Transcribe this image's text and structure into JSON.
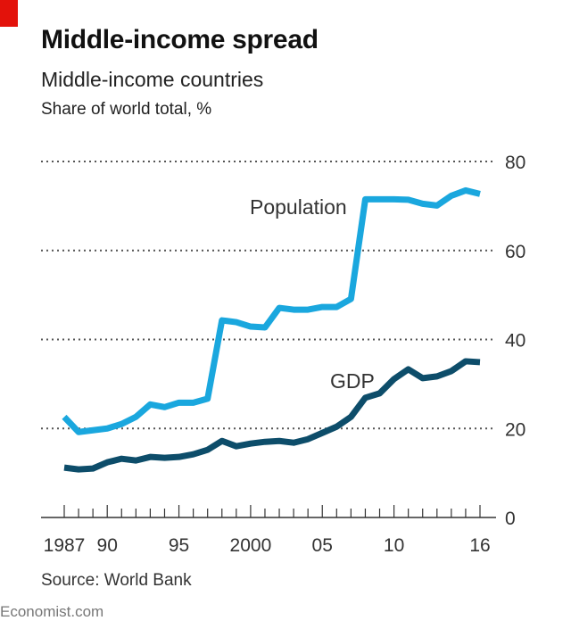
{
  "header": {
    "title": "Middle-income spread",
    "subtitle": "Middle-income countries",
    "unit": "Share of world total, %"
  },
  "footer": {
    "source": "Source: World Bank",
    "credit": "Economist.com"
  },
  "colors": {
    "accent": "#e3120b",
    "population": "#1aa7de",
    "gdp": "#0d4d6a"
  },
  "chart_data": {
    "type": "line",
    "title": "Middle-income spread",
    "subtitle": "Middle-income countries",
    "ylabel": "Share of world total, %",
    "ylim": [
      0,
      80
    ],
    "yticks": [
      0,
      20,
      40,
      60,
      80
    ],
    "xlim": [
      1987,
      2016
    ],
    "xtick_labels": [
      {
        "x": 1987,
        "label": "1987"
      },
      {
        "x": 1990,
        "label": "90"
      },
      {
        "x": 1995,
        "label": "95"
      },
      {
        "x": 2000,
        "label": "2000"
      },
      {
        "x": 2005,
        "label": "05"
      },
      {
        "x": 2010,
        "label": "10"
      },
      {
        "x": 2016,
        "label": "16"
      }
    ],
    "grid": "horizontal dotted",
    "x": [
      1987,
      1988,
      1989,
      1990,
      1991,
      1992,
      1993,
      1994,
      1995,
      1996,
      1997,
      1998,
      1999,
      2000,
      2001,
      2002,
      2003,
      2004,
      2005,
      2006,
      2007,
      2008,
      2009,
      2010,
      2011,
      2012,
      2013,
      2014,
      2015,
      2016
    ],
    "series": [
      {
        "name": "Population",
        "values": [
          22.6,
          19.2,
          19.6,
          20.0,
          21.0,
          22.6,
          25.4,
          24.8,
          25.8,
          25.8,
          26.7,
          44.3,
          43.9,
          42.9,
          42.7,
          47.1,
          46.7,
          46.7,
          47.3,
          47.3,
          49.1,
          71.5,
          71.5,
          71.5,
          71.4,
          70.5,
          70.1,
          72.3,
          73.5,
          72.7
        ]
      },
      {
        "name": "GDP",
        "values": [
          11.2,
          10.8,
          11.0,
          12.4,
          13.2,
          12.8,
          13.6,
          13.4,
          13.6,
          14.2,
          15.2,
          17.2,
          16.0,
          16.6,
          17.0,
          17.2,
          16.8,
          17.6,
          19.0,
          20.4,
          22.6,
          26.9,
          27.9,
          31.1,
          33.3,
          31.3,
          31.7,
          32.9,
          35.1,
          34.9
        ]
      }
    ]
  }
}
